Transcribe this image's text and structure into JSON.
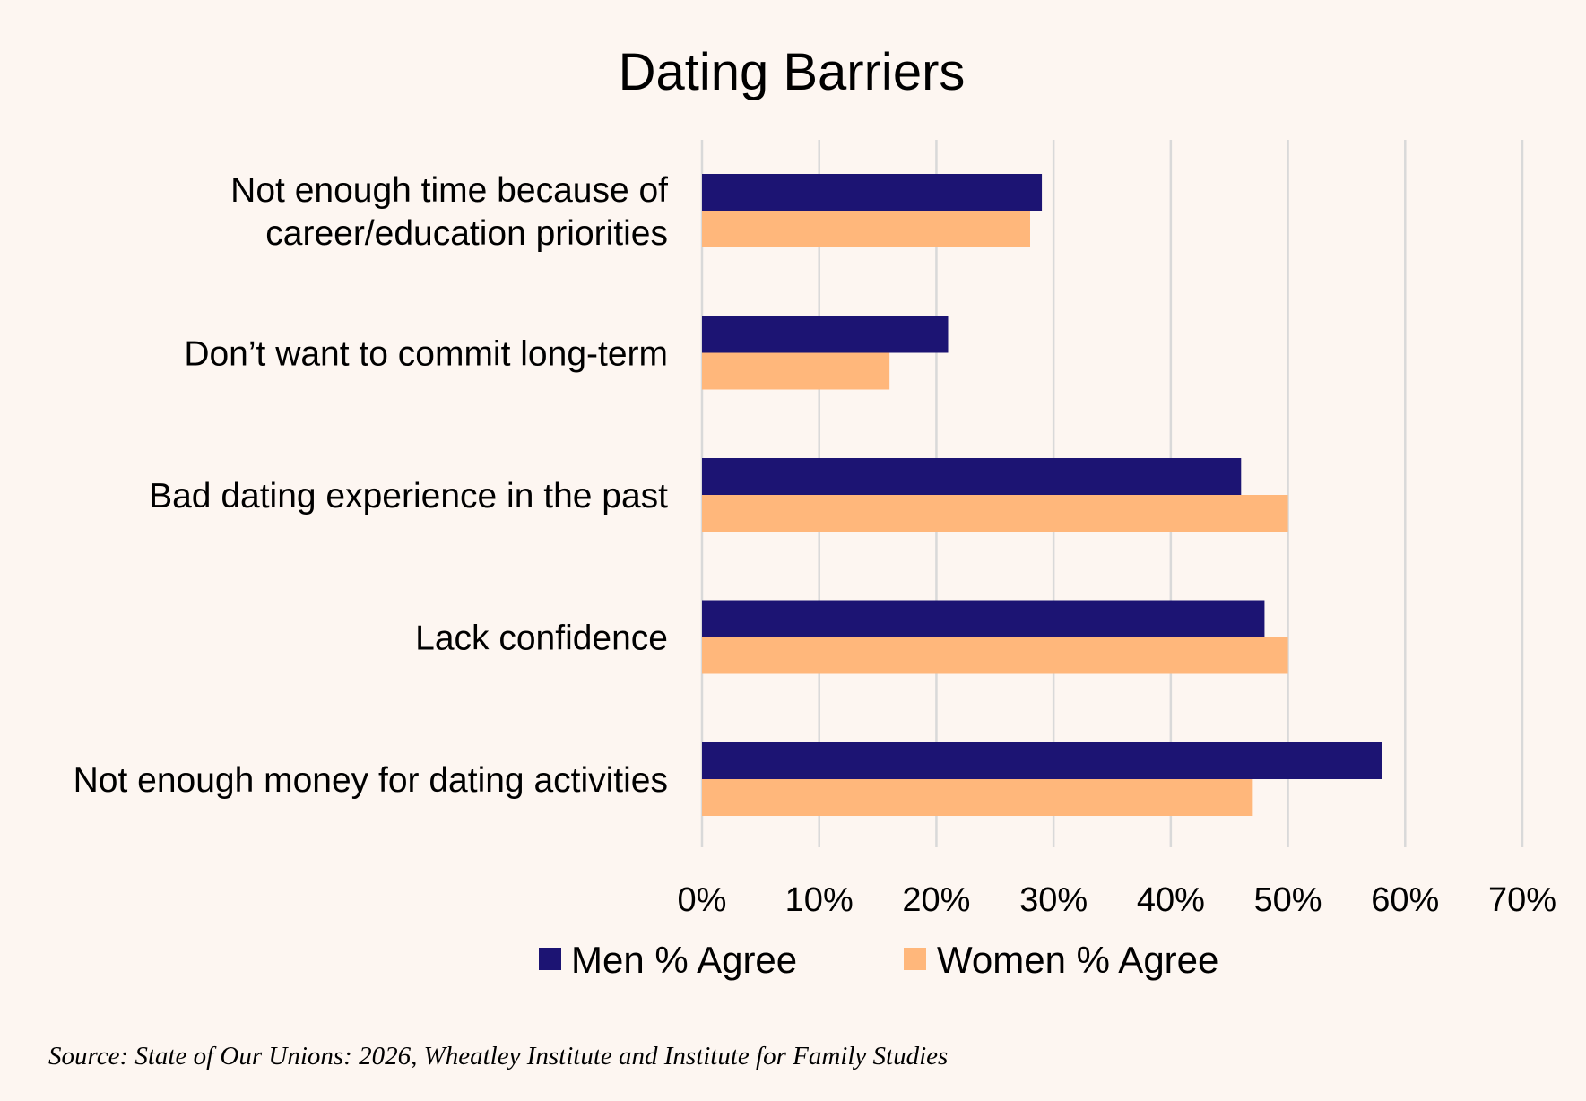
{
  "chart_data": {
    "type": "bar",
    "orientation": "horizontal",
    "title": "Dating Barriers",
    "categories": [
      [
        "Not enough time because of",
        "career/education priorities"
      ],
      [
        "Don’t want to commit long-term"
      ],
      [
        "Bad dating experience in the past"
      ],
      [
        "Lack confidence"
      ],
      [
        "Not enough money for dating activities"
      ]
    ],
    "series": [
      {
        "name": "Men % Agree",
        "color": "#1c1473",
        "values": [
          29,
          21,
          46,
          48,
          58
        ]
      },
      {
        "name": "Women % Agree",
        "color": "#ffb77b",
        "values": [
          28,
          16,
          50,
          50,
          47
        ]
      }
    ],
    "xlim": [
      0,
      70
    ],
    "xticks": [
      0,
      10,
      20,
      30,
      40,
      50,
      60,
      70
    ],
    "xtick_labels": [
      "0%",
      "10%",
      "20%",
      "30%",
      "40%",
      "50%",
      "60%",
      "70%"
    ],
    "xlabel": "",
    "ylabel": "",
    "grid": "vertical",
    "legend_position": "bottom-center",
    "source": "Source: State of Our Unions: 2026, Wheatley Institute and Institute for Family Studies"
  }
}
